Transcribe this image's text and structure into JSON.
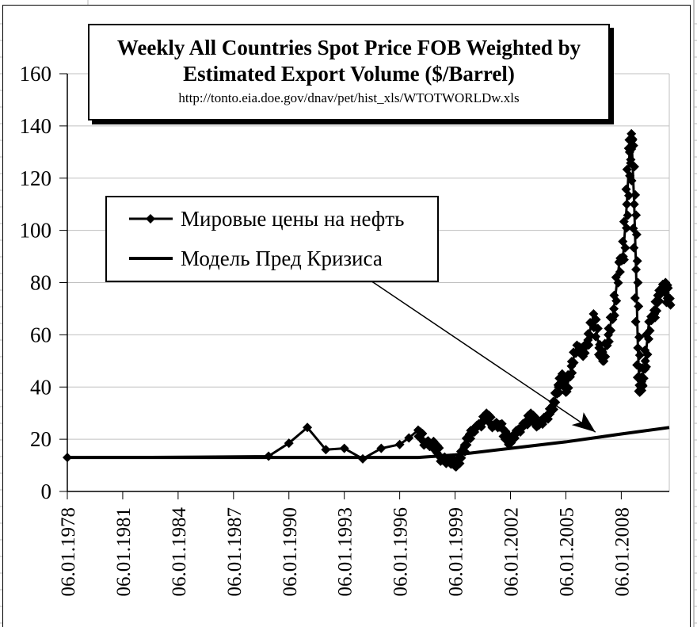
{
  "chart_data": {
    "type": "line",
    "title": "Weekly All Countries Spot Price FOB Weighted by Estimated Export Volume  ($/Barrel)",
    "subtitle": "http://tonto.eia.doe.gov/dnav/pet/hist_xls/WTOTWORLDw.xls",
    "xlabel": "",
    "ylabel": "",
    "ylim": [
      0,
      160
    ],
    "yticks": [
      "0",
      "20",
      "40",
      "60",
      "80",
      "100",
      "120",
      "140",
      "160"
    ],
    "xlim": [
      1978,
      2010.6
    ],
    "xticks": [
      {
        "year": 1978,
        "label": "06.01.1978"
      },
      {
        "year": 1981,
        "label": "06.01.1981"
      },
      {
        "year": 1984,
        "label": "06.01.1984"
      },
      {
        "year": 1987,
        "label": "06.01.1987"
      },
      {
        "year": 1990,
        "label": "06.01.1990"
      },
      {
        "year": 1993,
        "label": "06.01.1993"
      },
      {
        "year": 1996,
        "label": "06.01.1996"
      },
      {
        "year": 1999,
        "label": "06.01.1999"
      },
      {
        "year": 2002,
        "label": "06.01.2002"
      },
      {
        "year": 2005,
        "label": "06.01.2005"
      },
      {
        "year": 2008,
        "label": "06.01.2008"
      }
    ],
    "grid": true,
    "legend_position": "upper-left",
    "series": [
      {
        "name": "Мировые цены на нефть",
        "marker": "diamond",
        "x": [
          1978,
          1988.9,
          1990,
          1991,
          1992,
          1993,
          1994,
          1995,
          1996,
          1996.5,
          1997.0,
          1997.3,
          1997.6,
          1997.9,
          1998.2,
          1998.5,
          1998.8,
          1999.0,
          1999.2,
          1999.5,
          1999.8,
          2000.0,
          2000.4,
          2000.7,
          2001.0,
          2001.3,
          2001.6,
          2001.9,
          2002.2,
          2002.5,
          2002.9,
          2003.1,
          2003.4,
          2003.7,
          2004.0,
          2004.3,
          2004.6,
          2004.8,
          2005.0,
          2005.3,
          2005.6,
          2005.9,
          2006.2,
          2006.5,
          2006.8,
          2007.0,
          2007.3,
          2007.6,
          2007.9,
          2008.1,
          2008.3,
          2008.45,
          2008.55,
          2008.7,
          2008.8,
          2008.9,
          2009.0,
          2009.1,
          2009.3,
          2009.5,
          2009.8,
          2010.0,
          2010.2,
          2010.4,
          2010.5,
          2010.6
        ],
        "y": [
          13,
          13.5,
          18.5,
          24.5,
          16,
          16.5,
          12.5,
          16.5,
          18,
          20.5,
          23.5,
          19,
          18,
          18.5,
          13,
          11.5,
          12,
          10,
          12,
          17,
          22,
          24,
          26,
          30,
          25,
          26,
          24,
          18,
          22,
          24,
          27,
          30,
          25,
          27,
          29,
          33,
          40,
          45,
          38,
          48,
          56,
          52,
          58,
          68,
          55,
          50,
          60,
          70,
          88,
          90,
          110,
          130,
          137,
          110,
          85,
          55,
          38,
          42,
          50,
          65,
          68,
          75,
          78,
          80,
          74,
          72
        ]
      },
      {
        "name": "Модель Пред Кризиса",
        "marker": "none",
        "x": [
          1978,
          1997,
          1999,
          2002,
          2005,
          2008,
          2010.6
        ],
        "y": [
          13,
          13,
          14,
          16.5,
          19,
          22,
          24.5
        ]
      }
    ],
    "annotations": [
      {
        "type": "arrow",
        "from_series": "Модель Пред Кризиса",
        "points_to_year": 2006.6
      }
    ]
  }
}
